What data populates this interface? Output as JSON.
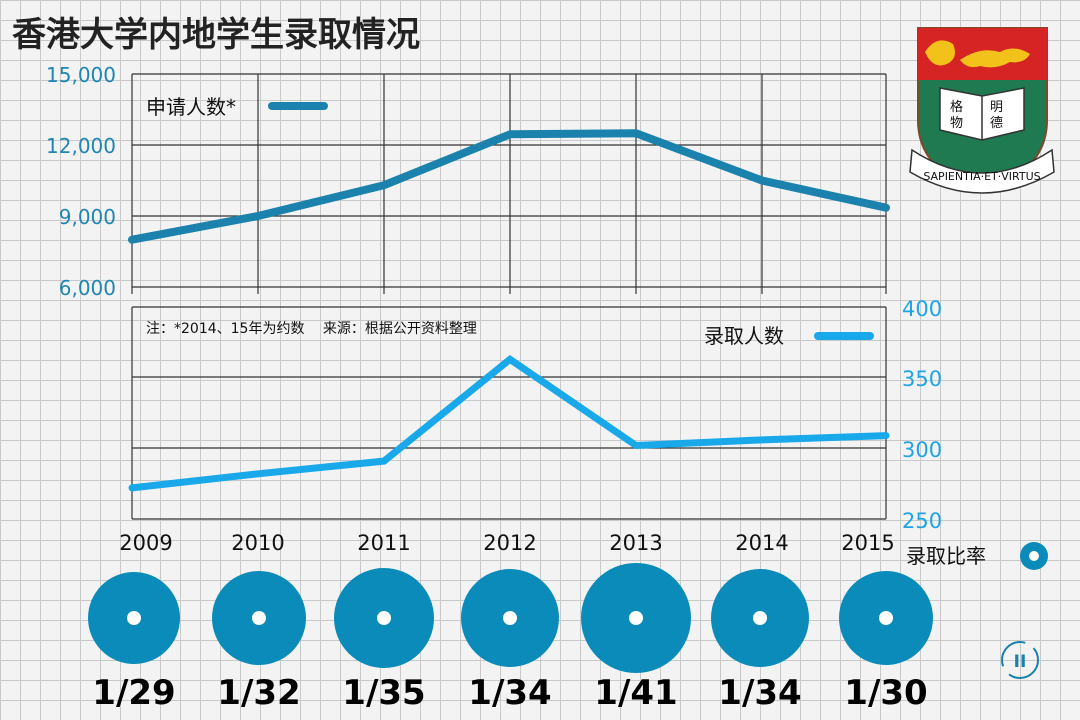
{
  "colors": {
    "applicants": "#1a82ad",
    "admitted": "#19a9ea",
    "circle": "#0b8bb9",
    "grid": "#333333"
  },
  "chart_data": {
    "type": "line",
    "title": "香港大学内地学生录取情况",
    "note": "注：*2014、15年为约数　 来源：根据公开资料整理",
    "categories": [
      "2009",
      "2010",
      "2011",
      "2012",
      "2013",
      "2014",
      "2015"
    ],
    "top_panel": {
      "series": [
        {
          "name": "申请人数*",
          "values": [
            8000,
            9000,
            10300,
            12450,
            12500,
            10500,
            9350
          ]
        }
      ],
      "ylim": [
        6000,
        15000
      ],
      "yticks": [
        6000,
        9000,
        12000,
        15000
      ],
      "ytick_labels": [
        "6,000",
        "9,000",
        "12,000",
        "15,000"
      ]
    },
    "bottom_panel": {
      "series": [
        {
          "name": "录取人数",
          "values": [
            272,
            282,
            291,
            363,
            302,
            306,
            309
          ]
        }
      ],
      "ylim": [
        250,
        400
      ],
      "yticks": [
        250,
        300,
        350,
        400
      ],
      "ytick_labels": [
        "250",
        "300",
        "350",
        "400"
      ]
    },
    "ratio": {
      "legend": "录取比率",
      "labels": [
        "1/29",
        "1/32",
        "1/35",
        "1/34",
        "1/41",
        "1/34",
        "1/30"
      ],
      "values": [
        29,
        32,
        35,
        34,
        41,
        34,
        30
      ]
    }
  }
}
